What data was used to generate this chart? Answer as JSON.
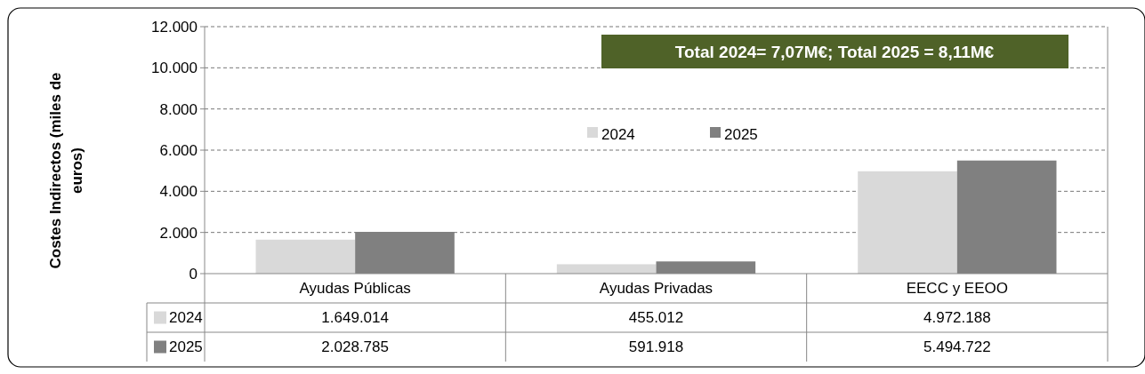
{
  "chart_data": {
    "type": "bar",
    "ylabel": "Costes Indirectos (miles de euros)",
    "categories": [
      "Ayudas Públicas",
      "Ayudas Privadas",
      "EECC y EEOO"
    ],
    "series": [
      {
        "name": "2024",
        "color": "#d9d9d9",
        "values": [
          1649.014,
          455.012,
          4972.188
        ]
      },
      {
        "name": "2025",
        "color": "#808080",
        "values": [
          2028.785,
          591.918,
          5494.722
        ]
      }
    ],
    "ylim": [
      0,
      12000
    ],
    "yticks": [
      0,
      {
        "value": 2000,
        "label": "2.000"
      },
      {
        "value": 4000,
        "label": "4.000"
      },
      {
        "value": 6000,
        "label": "6.000"
      },
      {
        "value": 8000,
        "label": "8.000"
      },
      {
        "value": 10000,
        "label": "10.000"
      },
      {
        "value": 12000,
        "label": "12.000"
      }
    ],
    "grid": "y",
    "legend": "top",
    "annotations": [
      "Total 2024= 7,07M€; Total 2025 = 8,11M€",
      "1.649.014",
      "455.012",
      "4.972.188",
      "2.028.785",
      "591.918",
      "5.494.722"
    ]
  }
}
